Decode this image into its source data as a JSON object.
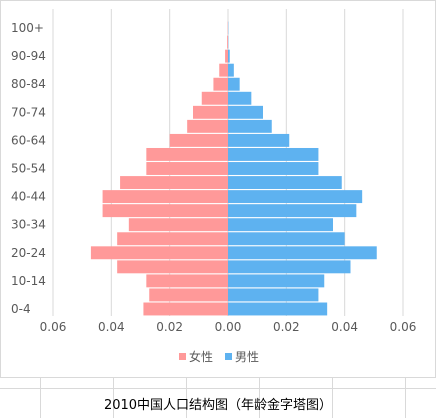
{
  "chart_data": {
    "type": "bar",
    "orientation": "horizontal",
    "layout": "population-pyramid",
    "categories": [
      "0-4",
      "5-9",
      "10-14",
      "15-19",
      "20-24",
      "25-29",
      "30-34",
      "35-39",
      "40-44",
      "45-49",
      "50-54",
      "55-59",
      "60-64",
      "65-69",
      "70-74",
      "75-79",
      "80-84",
      "85-89",
      "90-94",
      "95-99",
      "100+"
    ],
    "visible_category_labels": [
      "0-4",
      "10-14",
      "20-24",
      "30-34",
      "40-44",
      "50-54",
      "60-64",
      "70-74",
      "80-84",
      "90-94",
      "100+"
    ],
    "series": [
      {
        "name": "女性",
        "color": "#FF9999",
        "direction": "left",
        "values": [
          0.029,
          0.027,
          0.028,
          0.038,
          0.047,
          0.038,
          0.034,
          0.043,
          0.043,
          0.037,
          0.028,
          0.028,
          0.02,
          0.014,
          0.012,
          0.009,
          0.005,
          0.003,
          0.001,
          0.0003,
          0.0001
        ]
      },
      {
        "name": "男性",
        "color": "#5EB2F0",
        "direction": "right",
        "values": [
          0.034,
          0.031,
          0.033,
          0.042,
          0.051,
          0.04,
          0.036,
          0.044,
          0.046,
          0.039,
          0.031,
          0.031,
          0.021,
          0.015,
          0.012,
          0.008,
          0.004,
          0.002,
          0.0006,
          0.0001,
          0.0001
        ]
      }
    ],
    "x_ticks": [
      "0.06",
      "0.04",
      "0.02",
      "0.00",
      "0.02",
      "0.04",
      "0.06"
    ],
    "xlim": [
      -0.06,
      0.06
    ],
    "grid": true,
    "legend": "bottom",
    "title": "",
    "caption": "2010中国人口结构图（年龄金字塔图）"
  }
}
